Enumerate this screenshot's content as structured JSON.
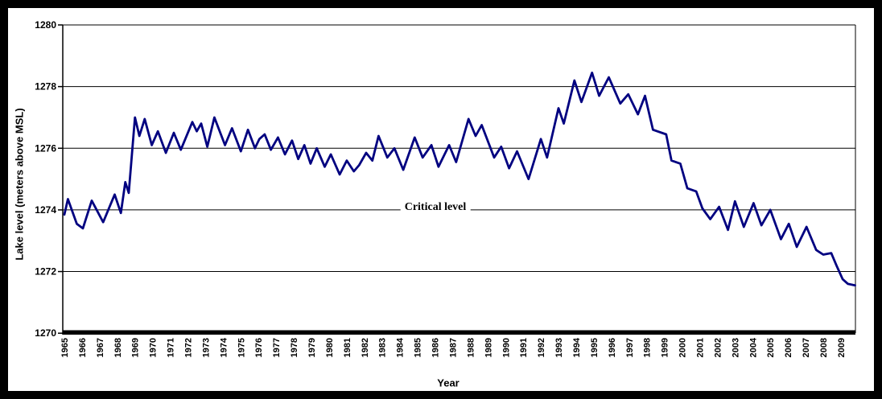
{
  "chart_data": {
    "type": "line",
    "title": "",
    "xlabel": "Year",
    "ylabel": "Lake level (meters above MSL)",
    "xlim": [
      1964.9,
      2009.9
    ],
    "ylim": [
      1270,
      1280
    ],
    "grid": "horizontal",
    "legend": "none",
    "line_color": "#000080",
    "annotation": {
      "text": "Critical level",
      "level": 1274
    },
    "y_ticks": [
      1270,
      1272,
      1274,
      1276,
      1278,
      1280
    ],
    "x_ticks": [
      1965,
      1966,
      1967,
      1968,
      1969,
      1970,
      1971,
      1972,
      1973,
      1974,
      1975,
      1976,
      1977,
      1978,
      1979,
      1980,
      1981,
      1982,
      1983,
      1984,
      1985,
      1986,
      1987,
      1988,
      1989,
      1990,
      1991,
      1992,
      1993,
      1994,
      1995,
      1996,
      1997,
      1998,
      1999,
      2000,
      2001,
      2002,
      2003,
      2004,
      2005,
      2006,
      2007,
      2008,
      2009
    ],
    "series": [
      {
        "name": "Lake level",
        "points": [
          [
            1965.0,
            1273.85
          ],
          [
            1965.2,
            1274.35
          ],
          [
            1965.7,
            1273.55
          ],
          [
            1966.05,
            1273.4
          ],
          [
            1966.55,
            1274.3
          ],
          [
            1967.2,
            1273.6
          ],
          [
            1967.85,
            1274.5
          ],
          [
            1968.2,
            1273.9
          ],
          [
            1968.45,
            1274.9
          ],
          [
            1968.65,
            1274.55
          ],
          [
            1969.0,
            1277.0
          ],
          [
            1969.25,
            1276.4
          ],
          [
            1969.55,
            1276.95
          ],
          [
            1969.95,
            1276.1
          ],
          [
            1970.3,
            1276.55
          ],
          [
            1970.75,
            1275.85
          ],
          [
            1971.2,
            1276.5
          ],
          [
            1971.6,
            1275.95
          ],
          [
            1972.25,
            1276.85
          ],
          [
            1972.5,
            1276.55
          ],
          [
            1972.75,
            1276.8
          ],
          [
            1973.1,
            1276.05
          ],
          [
            1973.5,
            1277.0
          ],
          [
            1974.1,
            1276.1
          ],
          [
            1974.5,
            1276.65
          ],
          [
            1975.0,
            1275.9
          ],
          [
            1975.4,
            1276.6
          ],
          [
            1975.8,
            1276.0
          ],
          [
            1976.05,
            1276.3
          ],
          [
            1976.35,
            1276.45
          ],
          [
            1976.7,
            1275.95
          ],
          [
            1977.1,
            1276.35
          ],
          [
            1977.5,
            1275.8
          ],
          [
            1977.9,
            1276.25
          ],
          [
            1978.25,
            1275.65
          ],
          [
            1978.6,
            1276.1
          ],
          [
            1978.95,
            1275.5
          ],
          [
            1979.3,
            1276.0
          ],
          [
            1979.75,
            1275.4
          ],
          [
            1980.1,
            1275.8
          ],
          [
            1980.6,
            1275.15
          ],
          [
            1981.0,
            1275.6
          ],
          [
            1981.4,
            1275.25
          ],
          [
            1981.7,
            1275.45
          ],
          [
            1982.1,
            1275.85
          ],
          [
            1982.45,
            1275.6
          ],
          [
            1982.8,
            1276.4
          ],
          [
            1983.3,
            1275.7
          ],
          [
            1983.7,
            1276.0
          ],
          [
            1984.2,
            1275.3
          ],
          [
            1984.85,
            1276.35
          ],
          [
            1985.3,
            1275.7
          ],
          [
            1985.8,
            1276.1
          ],
          [
            1986.2,
            1275.4
          ],
          [
            1986.8,
            1276.1
          ],
          [
            1987.2,
            1275.55
          ],
          [
            1987.9,
            1276.95
          ],
          [
            1988.3,
            1276.4
          ],
          [
            1988.65,
            1276.75
          ],
          [
            1989.35,
            1275.7
          ],
          [
            1989.75,
            1276.05
          ],
          [
            1990.2,
            1275.35
          ],
          [
            1990.65,
            1275.9
          ],
          [
            1991.3,
            1275.0
          ],
          [
            1992.0,
            1276.3
          ],
          [
            1992.35,
            1275.7
          ],
          [
            1993.0,
            1277.3
          ],
          [
            1993.3,
            1276.8
          ],
          [
            1993.9,
            1278.2
          ],
          [
            1994.3,
            1277.5
          ],
          [
            1994.9,
            1278.45
          ],
          [
            1995.3,
            1277.7
          ],
          [
            1995.85,
            1278.3
          ],
          [
            1996.5,
            1277.45
          ],
          [
            1996.95,
            1277.75
          ],
          [
            1997.5,
            1277.1
          ],
          [
            1997.9,
            1277.7
          ],
          [
            1998.35,
            1276.6
          ],
          [
            1999.1,
            1276.45
          ],
          [
            1999.4,
            1275.6
          ],
          [
            1999.9,
            1275.5
          ],
          [
            2000.3,
            1274.7
          ],
          [
            2000.8,
            1274.6
          ],
          [
            2001.15,
            1274.05
          ],
          [
            2001.6,
            1273.7
          ],
          [
            2002.1,
            1274.1
          ],
          [
            2002.6,
            1273.35
          ],
          [
            2003.0,
            1274.28
          ],
          [
            2003.5,
            1273.45
          ],
          [
            2004.05,
            1274.22
          ],
          [
            2004.5,
            1273.5
          ],
          [
            2005.0,
            1274.0
          ],
          [
            2005.6,
            1273.05
          ],
          [
            2006.05,
            1273.55
          ],
          [
            2006.5,
            1272.8
          ],
          [
            2007.05,
            1273.45
          ],
          [
            2007.6,
            1272.7
          ],
          [
            2008.0,
            1272.55
          ],
          [
            2008.45,
            1272.6
          ],
          [
            2008.75,
            1272.2
          ],
          [
            2009.1,
            1271.75
          ],
          [
            2009.4,
            1271.6
          ],
          [
            2009.8,
            1271.55
          ]
        ]
      }
    ]
  }
}
